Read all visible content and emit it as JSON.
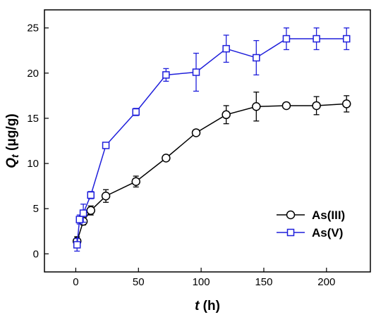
{
  "chart_data": {
    "type": "line",
    "xlabel": {
      "var": "t",
      "unit": " (h)"
    },
    "ylabel": {
      "var": "Q",
      "sub": "t",
      "unit": " (μg/g)"
    },
    "xlim": [
      -25,
      235
    ],
    "ylim": [
      -2,
      27
    ],
    "xticks": [
      "0",
      "50",
      "100",
      "150",
      "200"
    ],
    "yticks": [
      "0",
      "5",
      "10",
      "15",
      "20",
      "25"
    ],
    "legend_position": "lower-right",
    "series": [
      {
        "name": "As(III)",
        "color": "#000000",
        "marker": "circle",
        "points": [
          {
            "x": 1,
            "y": 1.4,
            "err": 0.5
          },
          {
            "x": 6,
            "y": 3.6,
            "err": 0.4
          },
          {
            "x": 12,
            "y": 4.8,
            "err": 0.5
          },
          {
            "x": 24,
            "y": 6.4,
            "err": 0.7
          },
          {
            "x": 48,
            "y": 8.0,
            "err": 0.6
          },
          {
            "x": 72,
            "y": 10.6,
            "err": 0.3
          },
          {
            "x": 96,
            "y": 13.4,
            "err": 0.3
          },
          {
            "x": 120,
            "y": 15.4,
            "err": 1.0
          },
          {
            "x": 144,
            "y": 16.3,
            "err": 1.6
          },
          {
            "x": 168,
            "y": 16.4,
            "err": 0.3
          },
          {
            "x": 192,
            "y": 16.4,
            "err": 1.0
          },
          {
            "x": 216,
            "y": 16.6,
            "err": 0.9
          }
        ]
      },
      {
        "name": "As(V)",
        "color": "#1f1fdb",
        "marker": "square",
        "points": [
          {
            "x": 1,
            "y": 1.0,
            "err": 0.7
          },
          {
            "x": 3,
            "y": 3.8,
            "err": 0.5
          },
          {
            "x": 6,
            "y": 4.5,
            "err": 1.0
          },
          {
            "x": 12,
            "y": 6.5,
            "err": 0.4
          },
          {
            "x": 24,
            "y": 12.0,
            "err": 0.2
          },
          {
            "x": 48,
            "y": 15.7,
            "err": 0.4
          },
          {
            "x": 72,
            "y": 19.8,
            "err": 0.7
          },
          {
            "x": 96,
            "y": 20.1,
            "err": 2.1
          },
          {
            "x": 120,
            "y": 22.7,
            "err": 1.5
          },
          {
            "x": 144,
            "y": 21.7,
            "err": 1.9
          },
          {
            "x": 168,
            "y": 23.8,
            "err": 1.2
          },
          {
            "x": 192,
            "y": 23.8,
            "err": 1.2
          },
          {
            "x": 216,
            "y": 23.8,
            "err": 1.2
          }
        ]
      }
    ]
  }
}
